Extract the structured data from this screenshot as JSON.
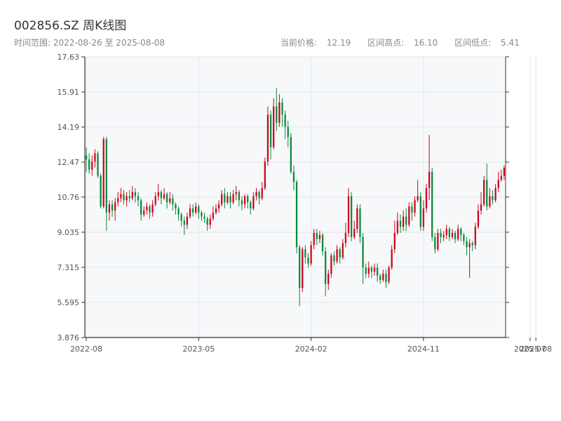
{
  "header": {
    "title": "002856.SZ 周K线图",
    "range_label": "时间范围:",
    "range_start": "2022-08-26",
    "range_sep": "至",
    "range_end": "2025-08-08",
    "price_label": "当前价格:",
    "price_value": "12.19",
    "high_label": "区间高点:",
    "high_value": "16.10",
    "low_label": "区间低点:",
    "low_value": "5.41"
  },
  "chart_data": {
    "type": "candlestick",
    "title": "002856.SZ 周K线图",
    "ylim": [
      3.876,
      17.63
    ],
    "y_ticks": [
      3.876,
      5.595,
      7.315,
      9.035,
      10.76,
      12.47,
      14.19,
      15.91,
      17.63
    ],
    "y_tick_labels": [
      "3.876",
      "5.595",
      "7.315",
      "9.035",
      "10.76",
      "12.47",
      "14.19",
      "15.91",
      "17.63"
    ],
    "x_ticks": [
      {
        "index": 0,
        "label": "2022-08"
      },
      {
        "index": 39,
        "label": "2023-05"
      },
      {
        "index": 78,
        "label": "2024-02"
      },
      {
        "index": 117,
        "label": "2024-11"
      },
      {
        "index": 154,
        "label": "2025-07"
      },
      {
        "index": 156,
        "label": "2025-08"
      }
    ],
    "up_color": "#d0021b",
    "down_color": "#0a8a3a",
    "current_price": 12.19,
    "range_high": 16.1,
    "range_low": 5.41,
    "candles": [
      [
        12.8,
        12.6,
        13.2,
        12.0
      ],
      [
        12.6,
        12.1,
        12.9,
        11.9
      ],
      [
        12.1,
        12.5,
        12.8,
        11.8
      ],
      [
        12.5,
        12.9,
        13.1,
        12.2
      ],
      [
        12.9,
        11.8,
        13.0,
        11.7
      ],
      [
        11.8,
        10.3,
        11.9,
        10.2
      ],
      [
        10.3,
        13.6,
        13.7,
        10.2
      ],
      [
        13.6,
        10.0,
        13.7,
        9.1
      ],
      [
        10.0,
        10.4,
        10.6,
        9.6
      ],
      [
        10.4,
        10.1,
        10.6,
        9.8
      ],
      [
        10.1,
        10.5,
        10.7,
        9.6
      ],
      [
        10.5,
        10.7,
        11.0,
        10.3
      ],
      [
        10.7,
        10.9,
        11.2,
        10.5
      ],
      [
        10.9,
        10.6,
        11.1,
        10.4
      ],
      [
        10.6,
        10.8,
        11.0,
        10.3
      ],
      [
        10.8,
        10.7,
        11.1,
        10.5
      ],
      [
        10.7,
        11.0,
        11.3,
        10.6
      ],
      [
        11.0,
        10.8,
        11.2,
        10.5
      ],
      [
        10.8,
        10.6,
        11.0,
        10.3
      ],
      [
        10.6,
        9.9,
        10.7,
        9.6
      ],
      [
        9.9,
        10.1,
        10.3,
        9.8
      ],
      [
        10.1,
        10.3,
        10.5,
        9.9
      ],
      [
        10.3,
        10.0,
        10.4,
        9.7
      ],
      [
        10.0,
        10.4,
        10.6,
        9.8
      ],
      [
        10.4,
        10.8,
        11.0,
        10.3
      ],
      [
        10.8,
        11.0,
        11.4,
        10.6
      ],
      [
        11.0,
        10.7,
        11.1,
        10.4
      ],
      [
        10.7,
        10.9,
        11.2,
        10.6
      ],
      [
        10.9,
        10.5,
        11.0,
        10.2
      ],
      [
        10.5,
        10.7,
        11.0,
        10.4
      ],
      [
        10.7,
        10.4,
        10.9,
        10.1
      ],
      [
        10.4,
        10.2,
        10.5,
        9.9
      ],
      [
        10.2,
        9.9,
        10.3,
        9.6
      ],
      [
        9.9,
        9.6,
        10.0,
        9.3
      ],
      [
        9.6,
        9.4,
        9.8,
        8.9
      ],
      [
        9.4,
        9.8,
        10.0,
        9.2
      ],
      [
        9.8,
        10.2,
        10.4,
        9.7
      ],
      [
        10.2,
        10.0,
        10.4,
        9.8
      ],
      [
        10.0,
        10.3,
        10.5,
        9.9
      ],
      [
        10.3,
        10.0,
        10.4,
        9.7
      ],
      [
        10.0,
        9.8,
        10.1,
        9.6
      ],
      [
        9.8,
        9.7,
        10.0,
        9.5
      ],
      [
        9.7,
        9.4,
        9.8,
        9.1
      ],
      [
        9.4,
        9.7,
        9.9,
        9.2
      ],
      [
        9.7,
        10.0,
        10.3,
        9.6
      ],
      [
        10.0,
        10.2,
        10.4,
        9.9
      ],
      [
        10.2,
        10.4,
        10.6,
        10.0
      ],
      [
        10.4,
        10.9,
        11.1,
        10.3
      ],
      [
        10.9,
        10.5,
        11.2,
        10.2
      ],
      [
        10.5,
        10.8,
        11.0,
        10.4
      ],
      [
        10.8,
        10.5,
        11.0,
        10.2
      ],
      [
        10.5,
        10.9,
        11.1,
        10.4
      ],
      [
        10.9,
        11.0,
        11.3,
        10.6
      ],
      [
        11.0,
        10.6,
        11.1,
        10.3
      ],
      [
        10.6,
        10.4,
        10.8,
        10.1
      ],
      [
        10.4,
        10.8,
        10.9,
        10.2
      ],
      [
        10.8,
        10.5,
        10.9,
        10.2
      ],
      [
        10.5,
        10.2,
        10.6,
        9.9
      ],
      [
        10.2,
        10.8,
        11.0,
        10.1
      ],
      [
        10.8,
        11.0,
        11.2,
        10.6
      ],
      [
        11.0,
        10.7,
        11.1,
        10.4
      ],
      [
        10.7,
        11.2,
        11.5,
        10.6
      ],
      [
        11.2,
        12.5,
        12.7,
        11.1
      ],
      [
        12.5,
        14.8,
        15.2,
        12.3
      ],
      [
        14.8,
        13.2,
        15.0,
        12.6
      ],
      [
        13.2,
        15.2,
        15.6,
        13.1
      ],
      [
        15.2,
        14.4,
        16.1,
        14.0
      ],
      [
        14.4,
        15.4,
        15.8,
        14.2
      ],
      [
        15.4,
        14.8,
        15.6,
        14.2
      ],
      [
        14.8,
        14.2,
        15.0,
        13.6
      ],
      [
        14.2,
        13.7,
        14.5,
        13.2
      ],
      [
        13.7,
        12.0,
        13.9,
        11.9
      ],
      [
        12.0,
        11.5,
        12.3,
        11.1
      ],
      [
        11.5,
        8.3,
        11.6,
        8.0
      ],
      [
        8.3,
        6.3,
        8.4,
        5.41
      ],
      [
        6.3,
        8.2,
        8.3,
        6.1
      ],
      [
        8.2,
        7.8,
        8.4,
        7.5
      ],
      [
        7.8,
        7.5,
        8.0,
        7.3
      ],
      [
        7.5,
        8.4,
        8.6,
        7.4
      ],
      [
        8.4,
        9.0,
        9.2,
        8.2
      ],
      [
        9.0,
        8.7,
        9.2,
        8.4
      ],
      [
        8.7,
        8.9,
        9.1,
        8.5
      ],
      [
        8.9,
        8.1,
        9.0,
        7.9
      ],
      [
        8.1,
        6.5,
        8.3,
        5.9
      ],
      [
        6.5,
        7.0,
        7.2,
        6.2
      ],
      [
        7.0,
        7.9,
        8.0,
        6.8
      ],
      [
        7.9,
        7.6,
        8.1,
        7.4
      ],
      [
        7.6,
        8.2,
        8.4,
        7.5
      ],
      [
        8.2,
        7.8,
        8.3,
        7.5
      ],
      [
        7.8,
        8.5,
        8.7,
        7.7
      ],
      [
        8.5,
        9.0,
        9.5,
        8.3
      ],
      [
        9.0,
        10.8,
        11.2,
        8.8
      ],
      [
        10.8,
        8.8,
        11.0,
        8.6
      ],
      [
        8.8,
        9.2,
        9.6,
        8.7
      ],
      [
        9.2,
        10.2,
        10.4,
        9.0
      ],
      [
        10.2,
        8.8,
        10.4,
        8.5
      ],
      [
        8.8,
        7.3,
        9.0,
        6.5
      ],
      [
        7.3,
        7.0,
        7.5,
        6.8
      ],
      [
        7.0,
        7.3,
        7.6,
        6.8
      ],
      [
        7.3,
        7.1,
        7.4,
        6.8
      ],
      [
        7.1,
        7.3,
        7.5,
        6.9
      ],
      [
        7.3,
        6.9,
        7.5,
        6.6
      ],
      [
        6.9,
        6.7,
        7.0,
        6.5
      ],
      [
        6.7,
        7.0,
        7.2,
        6.6
      ],
      [
        7.0,
        6.6,
        7.2,
        6.3
      ],
      [
        6.6,
        7.3,
        7.4,
        6.5
      ],
      [
        7.3,
        8.2,
        8.4,
        7.2
      ],
      [
        8.2,
        9.0,
        9.6,
        8.0
      ],
      [
        9.0,
        9.6,
        10.0,
        8.9
      ],
      [
        9.6,
        9.3,
        9.9,
        9.0
      ],
      [
        9.3,
        9.8,
        10.1,
        9.1
      ],
      [
        9.8,
        9.4,
        10.2,
        9.1
      ],
      [
        9.4,
        10.3,
        10.5,
        9.3
      ],
      [
        10.3,
        10.0,
        10.5,
        9.6
      ],
      [
        10.0,
        10.6,
        10.8,
        9.8
      ],
      [
        10.6,
        10.8,
        11.6,
        10.5
      ],
      [
        10.8,
        9.3,
        11.0,
        9.1
      ],
      [
        9.3,
        10.2,
        10.6,
        9.1
      ],
      [
        10.2,
        11.2,
        11.4,
        10.0
      ],
      [
        11.2,
        12.0,
        13.8,
        10.6
      ],
      [
        12.0,
        8.8,
        12.2,
        8.6
      ],
      [
        8.8,
        8.2,
        9.0,
        8.0
      ],
      [
        8.2,
        9.0,
        9.2,
        8.1
      ],
      [
        9.0,
        8.8,
        9.2,
        8.5
      ],
      [
        8.8,
        8.9,
        9.1,
        8.6
      ],
      [
        8.9,
        9.2,
        9.4,
        8.7
      ],
      [
        9.2,
        8.8,
        9.3,
        8.6
      ],
      [
        8.8,
        9.0,
        9.2,
        8.7
      ],
      [
        9.0,
        8.7,
        9.1,
        8.5
      ],
      [
        8.7,
        9.2,
        9.4,
        8.6
      ],
      [
        9.2,
        8.9,
        9.3,
        8.6
      ],
      [
        8.9,
        8.6,
        9.0,
        8.4
      ],
      [
        8.6,
        8.3,
        8.8,
        7.9
      ],
      [
        8.3,
        8.5,
        8.7,
        6.8
      ],
      [
        8.5,
        8.4,
        8.6,
        8.1
      ],
      [
        8.4,
        9.3,
        9.5,
        8.2
      ],
      [
        9.3,
        10.1,
        10.4,
        9.2
      ],
      [
        10.1,
        10.4,
        11.0,
        9.9
      ],
      [
        10.4,
        11.6,
        11.8,
        10.3
      ],
      [
        11.6,
        10.3,
        12.4,
        10.1
      ],
      [
        10.3,
        10.8,
        11.2,
        10.2
      ],
      [
        10.8,
        10.6,
        11.1,
        10.4
      ],
      [
        10.6,
        11.2,
        11.4,
        10.5
      ],
      [
        11.2,
        11.6,
        12.0,
        11.0
      ],
      [
        11.6,
        11.8,
        12.1,
        11.5
      ],
      [
        11.8,
        12.19,
        12.3,
        11.6
      ]
    ]
  }
}
